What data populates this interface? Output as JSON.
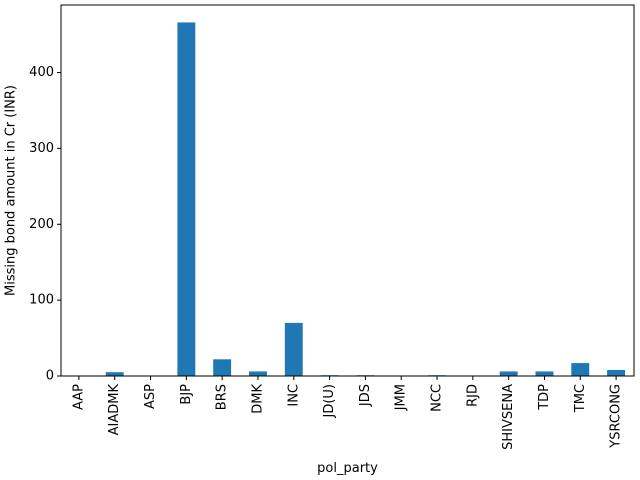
{
  "chart_data": {
    "type": "bar",
    "categories": [
      "AAP",
      "AIADMK",
      "ASP",
      "BJP",
      "BRS",
      "DMK",
      "INC",
      "JD(U)",
      "JDS",
      "JMM",
      "NCC",
      "RJD",
      "SHIVSENA",
      "TDP",
      "TMC",
      "YSRCONG"
    ],
    "values": [
      0,
      5,
      0,
      466,
      22,
      6,
      70,
      1,
      1,
      0,
      1,
      0,
      6,
      6,
      17,
      8
    ],
    "xlabel": "pol_party",
    "ylabel": "Missing bond amount in Cr (INR)",
    "ylim": [
      0,
      489
    ],
    "yticks": [
      0,
      100,
      200,
      300,
      400
    ],
    "bar_color": "#1f77b4",
    "grid": false,
    "legend": "none"
  }
}
